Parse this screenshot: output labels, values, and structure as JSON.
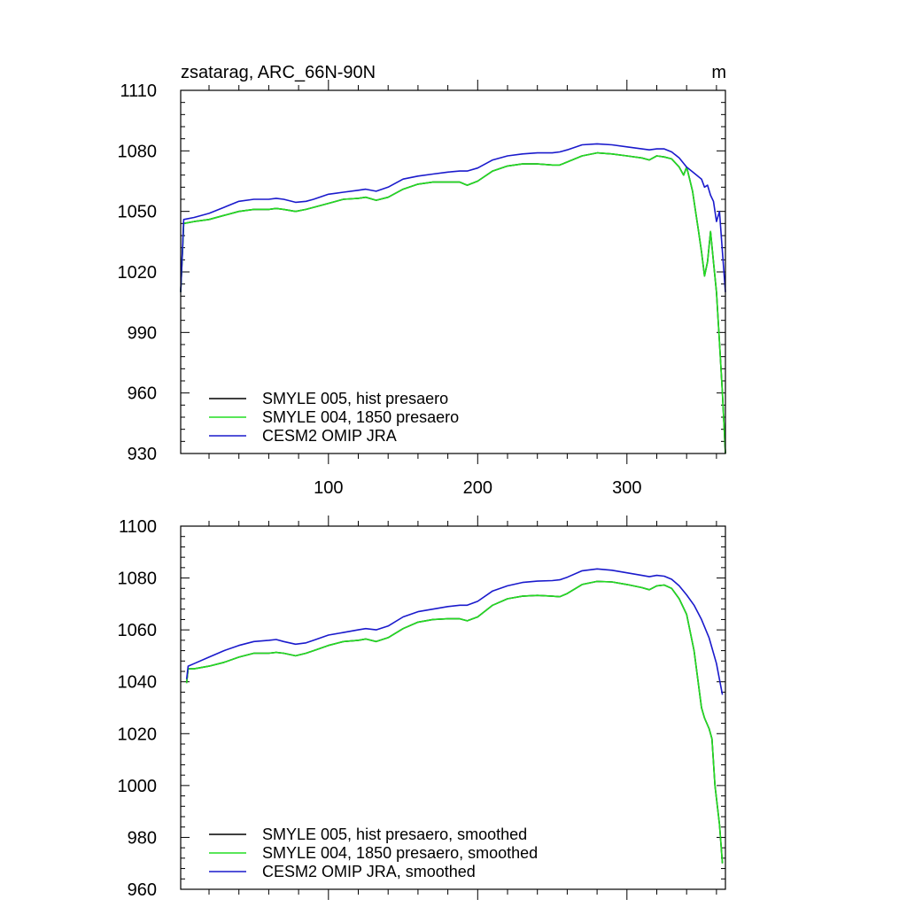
{
  "chart_data": [
    {
      "type": "line",
      "title": "zsatarag, ARC_66N-90N",
      "units": "m",
      "xlim": [
        1,
        366
      ],
      "ylim": [
        930,
        1110
      ],
      "yticks": [
        930,
        960,
        990,
        1020,
        1050,
        1080,
        1110
      ],
      "xticks": [
        100,
        200,
        300
      ],
      "xtick_labels": [
        "100",
        "200",
        "300"
      ],
      "legend_position": "bottom-left",
      "series": [
        {
          "name": "SMYLE 005, hist presaero",
          "color": "#000000",
          "x": [
            1,
            3,
            10,
            20,
            30,
            40,
            50,
            60,
            65,
            70,
            78,
            85,
            90,
            100,
            110,
            120,
            125,
            132,
            140,
            150,
            160,
            170,
            180,
            188,
            193,
            200,
            210,
            220,
            230,
            240,
            250,
            255,
            260,
            270,
            280,
            290,
            300,
            310,
            315,
            320,
            325,
            330,
            335,
            338,
            340,
            342,
            344,
            346,
            348,
            350,
            352,
            354,
            356,
            358,
            360,
            362,
            364,
            366
          ],
          "y": [
            1010,
            1044,
            1045,
            1046,
            1048,
            1050,
            1051,
            1051,
            1051.5,
            1051,
            1050,
            1051,
            1052,
            1054,
            1056,
            1056.5,
            1057,
            1055.5,
            1057,
            1061,
            1063.5,
            1064.5,
            1064.5,
            1064.5,
            1063,
            1065,
            1070,
            1072.5,
            1073.5,
            1073.5,
            1073,
            1073,
            1074.5,
            1077.5,
            1079,
            1078.5,
            1077.5,
            1076.5,
            1075.5,
            1077.5,
            1077,
            1076,
            1072,
            1068,
            1072,
            1066,
            1060,
            1050,
            1040,
            1030,
            1018,
            1025,
            1040,
            1025,
            1010,
            985,
            960,
            930
          ]
        },
        {
          "name": "SMYLE 004, 1850 presaero",
          "color": "#22dd22",
          "x": [
            1,
            3,
            10,
            20,
            30,
            40,
            50,
            60,
            65,
            70,
            78,
            85,
            90,
            100,
            110,
            120,
            125,
            132,
            140,
            150,
            160,
            170,
            180,
            188,
            193,
            200,
            210,
            220,
            230,
            240,
            250,
            255,
            260,
            270,
            280,
            290,
            300,
            310,
            315,
            320,
            325,
            330,
            335,
            338,
            340,
            342,
            344,
            346,
            348,
            350,
            352,
            354,
            356,
            358,
            360,
            362,
            364,
            366
          ],
          "y": [
            1010,
            1044,
            1045,
            1046,
            1048,
            1050,
            1051,
            1051,
            1051.5,
            1051,
            1050,
            1051,
            1052,
            1054,
            1056,
            1056.5,
            1057,
            1055.5,
            1057,
            1061,
            1063.5,
            1064.5,
            1064.5,
            1064.5,
            1063,
            1065,
            1070,
            1072.5,
            1073.5,
            1073.5,
            1073,
            1073,
            1074.5,
            1077.5,
            1079,
            1078.5,
            1077.5,
            1076.5,
            1075.5,
            1077.5,
            1077,
            1076,
            1072,
            1068,
            1072,
            1066,
            1060,
            1050,
            1040,
            1030,
            1018,
            1025,
            1040,
            1025,
            1010,
            985,
            960,
            930
          ]
        },
        {
          "name": "CESM2 OMIP JRA",
          "color": "#1a1acc",
          "x": [
            1,
            3,
            10,
            20,
            30,
            40,
            50,
            60,
            65,
            70,
            78,
            85,
            90,
            100,
            110,
            120,
            125,
            132,
            140,
            150,
            160,
            170,
            180,
            188,
            193,
            200,
            210,
            220,
            230,
            240,
            250,
            255,
            260,
            270,
            280,
            290,
            300,
            310,
            315,
            320,
            325,
            330,
            335,
            340,
            345,
            350,
            352,
            354,
            356,
            358,
            360,
            362,
            364,
            366
          ],
          "y": [
            1010,
            1046,
            1047,
            1049,
            1052,
            1055,
            1056,
            1056,
            1056.5,
            1056,
            1054.5,
            1055,
            1056,
            1058.5,
            1059.5,
            1060.5,
            1061,
            1060,
            1062,
            1066,
            1067.5,
            1068.5,
            1069.5,
            1070,
            1070,
            1071.5,
            1075.5,
            1077.5,
            1078.5,
            1079,
            1079,
            1079.5,
            1080.5,
            1083,
            1083.5,
            1083,
            1082,
            1081,
            1080.5,
            1081,
            1081,
            1079.5,
            1076.5,
            1072,
            1069,
            1066,
            1062,
            1063,
            1058,
            1055,
            1045,
            1050,
            1030,
            1010
          ]
        }
      ]
    },
    {
      "type": "line",
      "title": "",
      "xlim": [
        1,
        366
      ],
      "ylim": [
        960,
        1100
      ],
      "yticks": [
        960,
        980,
        1000,
        1020,
        1040,
        1060,
        1080,
        1100
      ],
      "xticks": [
        100,
        200,
        300
      ],
      "legend_position": "bottom-left",
      "series": [
        {
          "name": "SMYLE 005, hist presaero, smoothed",
          "color": "#000000",
          "x": [
            5,
            6,
            10,
            20,
            30,
            40,
            50,
            60,
            65,
            70,
            78,
            85,
            90,
            100,
            110,
            120,
            125,
            132,
            140,
            150,
            160,
            170,
            180,
            188,
            193,
            200,
            210,
            220,
            230,
            240,
            250,
            255,
            260,
            270,
            280,
            290,
            300,
            310,
            315,
            320,
            325,
            330,
            335,
            340,
            345,
            350,
            352,
            355,
            357,
            359,
            362,
            364
          ],
          "y": [
            1039.5,
            1045,
            1045,
            1046,
            1047.5,
            1049.5,
            1051,
            1051,
            1051.3,
            1051,
            1050,
            1051,
            1052,
            1054,
            1055.5,
            1056,
            1056.5,
            1055.5,
            1057,
            1060.5,
            1063,
            1064,
            1064.3,
            1064.3,
            1063.5,
            1065,
            1069.5,
            1072,
            1073,
            1073.3,
            1073,
            1072.8,
            1074,
            1077.5,
            1078.7,
            1078.5,
            1077.5,
            1076.3,
            1075.5,
            1077,
            1077.3,
            1076,
            1072,
            1066,
            1052,
            1030,
            1026,
            1022,
            1018,
            1000,
            985,
            970
          ]
        },
        {
          "name": "SMYLE 004, 1850 presaero, smoothed",
          "color": "#22dd22",
          "x": [
            5,
            6,
            10,
            20,
            30,
            40,
            50,
            60,
            65,
            70,
            78,
            85,
            90,
            100,
            110,
            120,
            125,
            132,
            140,
            150,
            160,
            170,
            180,
            188,
            193,
            200,
            210,
            220,
            230,
            240,
            250,
            255,
            260,
            270,
            280,
            290,
            300,
            310,
            315,
            320,
            325,
            330,
            335,
            340,
            345,
            350,
            352,
            355,
            357,
            359,
            362,
            364
          ],
          "y": [
            1039.5,
            1045,
            1045,
            1046,
            1047.5,
            1049.5,
            1051,
            1051,
            1051.3,
            1051,
            1050,
            1051,
            1052,
            1054,
            1055.5,
            1056,
            1056.5,
            1055.5,
            1057,
            1060.5,
            1063,
            1064,
            1064.3,
            1064.3,
            1063.5,
            1065,
            1069.5,
            1072,
            1073,
            1073.3,
            1073,
            1072.8,
            1074,
            1077.5,
            1078.7,
            1078.5,
            1077.5,
            1076.3,
            1075.5,
            1077,
            1077.3,
            1076,
            1072,
            1066,
            1052,
            1030,
            1026,
            1022,
            1018,
            1000,
            985,
            970
          ]
        },
        {
          "name": "CESM2 OMIP JRA, smoothed",
          "color": "#1a1acc",
          "x": [
            5,
            6,
            10,
            20,
            30,
            40,
            50,
            60,
            65,
            70,
            78,
            85,
            90,
            100,
            110,
            120,
            125,
            132,
            140,
            150,
            160,
            170,
            180,
            188,
            193,
            200,
            210,
            220,
            230,
            240,
            250,
            255,
            260,
            270,
            280,
            290,
            300,
            310,
            315,
            320,
            325,
            330,
            335,
            340,
            345,
            350,
            355,
            360,
            364
          ],
          "y": [
            1041,
            1046,
            1047,
            1049.5,
            1052,
            1054,
            1055.5,
            1056,
            1056.3,
            1055.5,
            1054.5,
            1055,
            1056,
            1058,
            1059,
            1060,
            1060.5,
            1060,
            1061.5,
            1065,
            1067,
            1068,
            1069,
            1069.5,
            1069.5,
            1071,
            1075,
            1077,
            1078.3,
            1078.8,
            1079,
            1079.3,
            1080.3,
            1082.8,
            1083.5,
            1083,
            1082,
            1081,
            1080.5,
            1081,
            1080.7,
            1079.5,
            1077,
            1073.5,
            1069.5,
            1064,
            1057,
            1047,
            1035
          ]
        }
      ]
    }
  ]
}
